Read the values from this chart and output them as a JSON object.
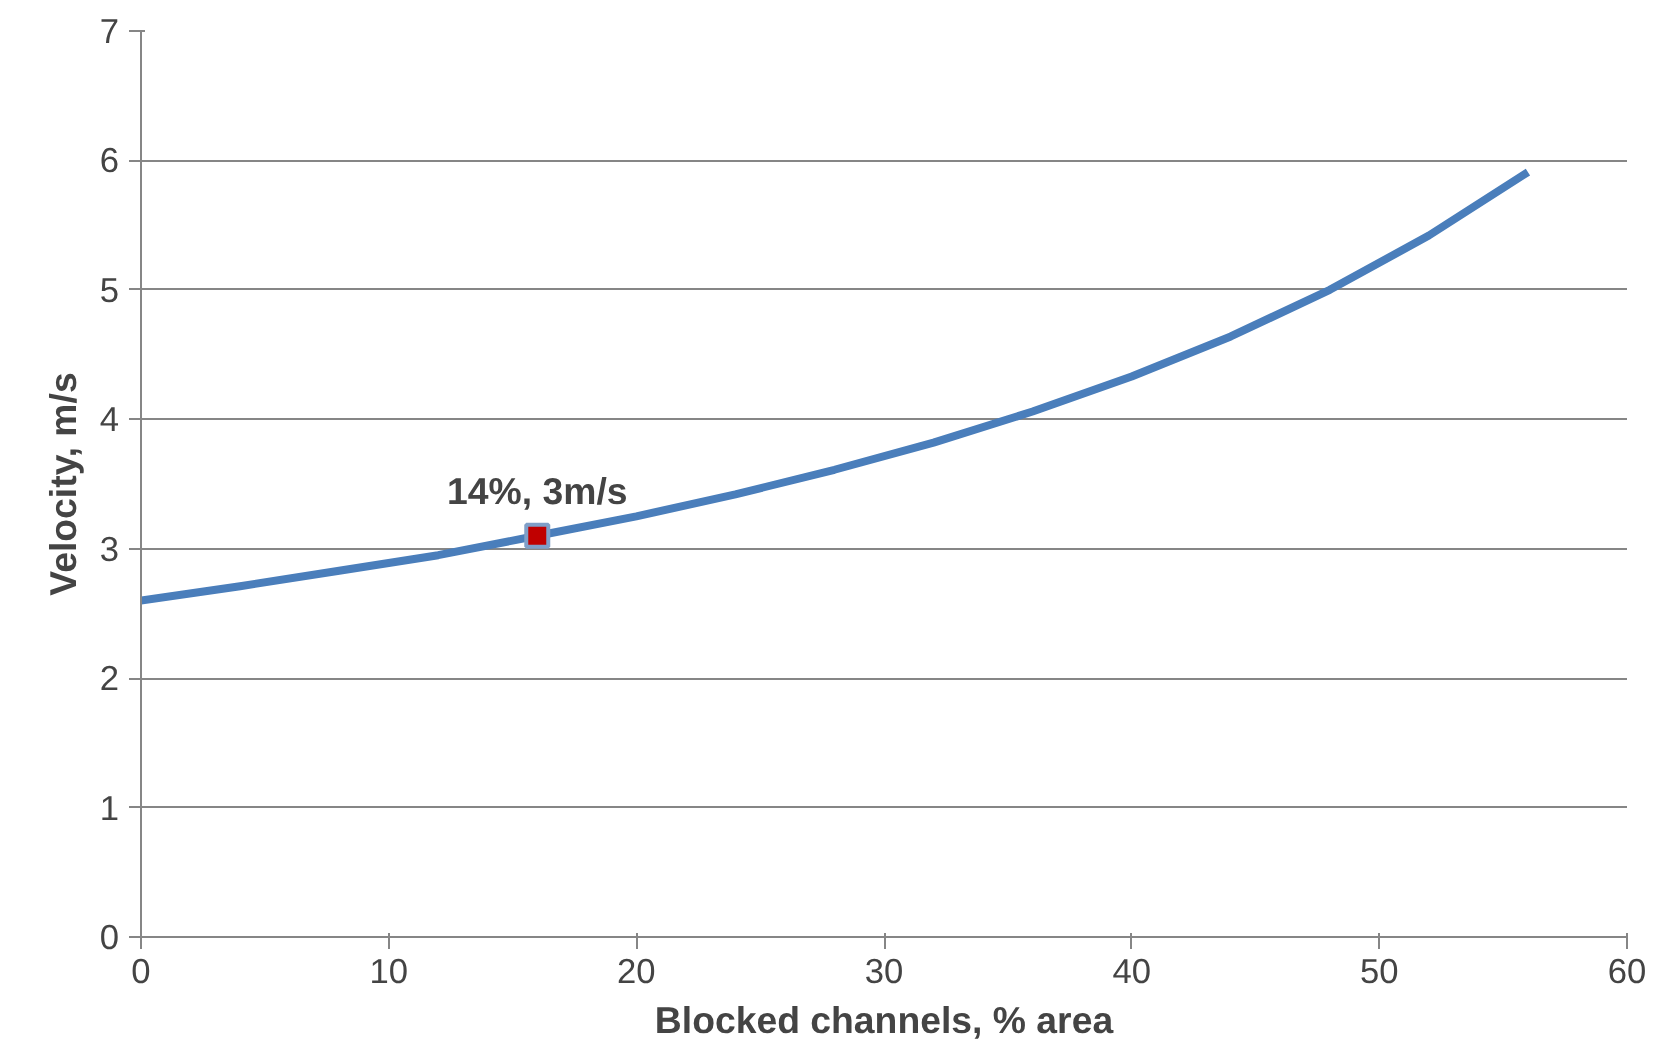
{
  "chart_data": {
    "type": "line",
    "xlabel": "Blocked channels, % area",
    "ylabel": "Velocity, m/s",
    "xlim": [
      0,
      60
    ],
    "xticks": [
      0,
      10,
      20,
      30,
      40,
      50,
      60
    ],
    "ylim": [
      0,
      7
    ],
    "yticks": [
      0,
      1,
      2,
      3,
      4,
      5,
      6,
      7
    ],
    "grid": "y",
    "series": [
      {
        "color": "#4a7ebb",
        "x": [
          0,
          4,
          8,
          12,
          16,
          20,
          24,
          28,
          32,
          36,
          40,
          44,
          48,
          52,
          56
        ],
        "values": [
          2.6,
          2.71,
          2.83,
          2.95,
          3.1,
          3.25,
          3.42,
          3.61,
          3.82,
          4.06,
          4.33,
          4.64,
          5.0,
          5.42,
          5.91
        ]
      },
      {
        "type": "scatter",
        "color": "#c00000",
        "marker": "square",
        "x": [
          16
        ],
        "values": [
          3.1
        ]
      }
    ],
    "annotations": [
      {
        "text": "14%, 3m/s",
        "x": 16,
        "y": 3.1
      }
    ]
  }
}
